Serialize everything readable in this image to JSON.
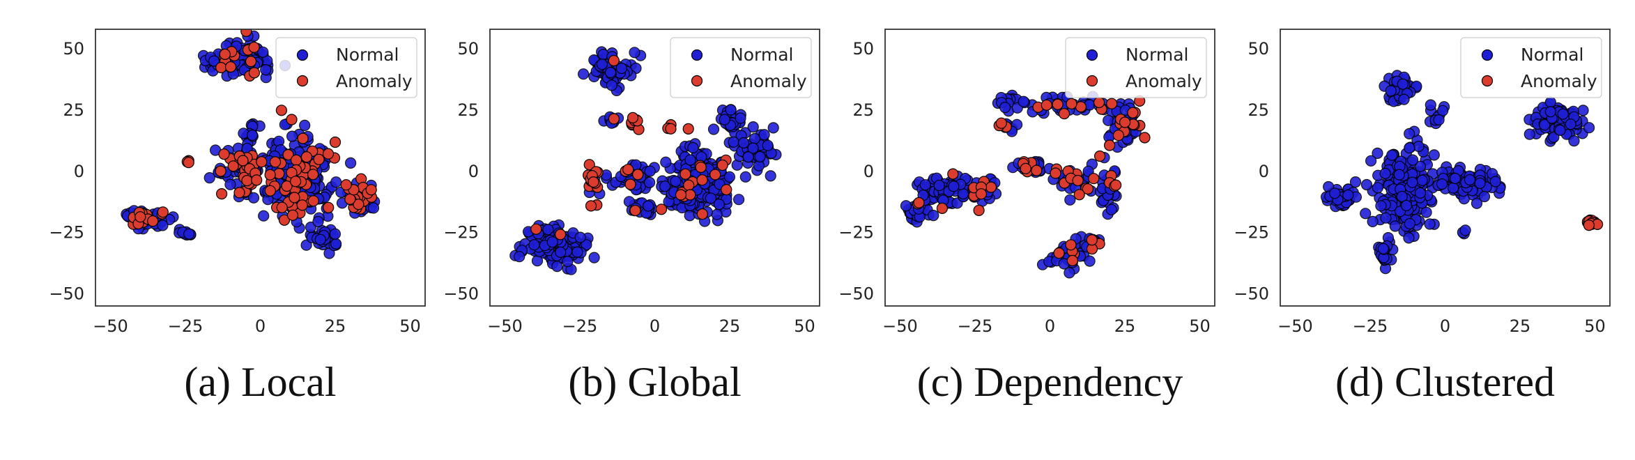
{
  "figure": {
    "legend": {
      "normal_label": "Normal",
      "anomaly_label": "Anomaly",
      "placement": "top-right"
    },
    "colors": {
      "normal": "#1f1fd6",
      "anomaly": "#dc3c2e",
      "edge": "#000000",
      "axes": "#333333"
    }
  },
  "chart_data": [
    {
      "type": "scatter",
      "caption": "(a) Local",
      "xlim": [
        -55,
        55
      ],
      "ylim": [
        -55,
        58
      ],
      "xticks": [
        -50,
        -25,
        0,
        25,
        50
      ],
      "yticks": [
        -50,
        -25,
        0,
        25,
        50
      ],
      "grid": false,
      "legend_placement": "top-right",
      "clusters": [
        {
          "cx": -7,
          "cy": 46,
          "rx": 10,
          "ry": 7,
          "n": 90,
          "anomaly_ratio": 0.18
        },
        {
          "cx": -38,
          "cy": -19,
          "rx": 7,
          "ry": 4,
          "n": 60,
          "anomaly_ratio": 0.25
        },
        {
          "cx": -25,
          "cy": -25,
          "rx": 2.5,
          "ry": 2,
          "n": 10,
          "anomaly_ratio": 0
        },
        {
          "cx": -24,
          "cy": 4,
          "rx": 1,
          "ry": 1,
          "n": 3,
          "anomaly_ratio": 1
        },
        {
          "cx": -6,
          "cy": 1,
          "rx": 8,
          "ry": 8,
          "n": 70,
          "anomaly_ratio": 0.35
        },
        {
          "cx": -3,
          "cy": 15,
          "rx": 3,
          "ry": 3,
          "n": 14,
          "anomaly_ratio": 0.2
        },
        {
          "cx": 13,
          "cy": -2,
          "rx": 11,
          "ry": 14,
          "n": 220,
          "anomaly_ratio": 0.2
        },
        {
          "cx": 33,
          "cy": -11,
          "rx": 5,
          "ry": 7,
          "n": 40,
          "anomaly_ratio": 0.45
        },
        {
          "cx": 21,
          "cy": -27,
          "rx": 4,
          "ry": 5,
          "n": 30,
          "anomaly_ratio": 0
        }
      ]
    },
    {
      "type": "scatter",
      "caption": "(b) Global",
      "xlim": [
        -55,
        55
      ],
      "ylim": [
        -55,
        58
      ],
      "xticks": [
        -50,
        -25,
        0,
        25,
        50
      ],
      "yticks": [
        -50,
        -25,
        0,
        25,
        50
      ],
      "grid": false,
      "legend_placement": "top-right",
      "clusters": [
        {
          "cx": -15,
          "cy": 42,
          "rx": 6,
          "ry": 6,
          "n": 70,
          "anomaly_ratio": 0.05
        },
        {
          "cx": -33,
          "cy": -30,
          "rx": 10,
          "ry": 7,
          "n": 140,
          "anomaly_ratio": 0.02
        },
        {
          "cx": -14,
          "cy": 21,
          "rx": 3,
          "ry": 2,
          "n": 10,
          "anomaly_ratio": 0.1
        },
        {
          "cx": -7,
          "cy": 20,
          "rx": 3,
          "ry": 3,
          "n": 8,
          "anomaly_ratio": 0.8
        },
        {
          "cx": -21,
          "cy": -4,
          "rx": 3,
          "ry": 7,
          "n": 18,
          "anomaly_ratio": 0.8
        },
        {
          "cx": -7,
          "cy": -2,
          "rx": 6,
          "ry": 5,
          "n": 50,
          "anomaly_ratio": 0.08
        },
        {
          "cx": -4,
          "cy": -15,
          "rx": 5,
          "ry": 3,
          "n": 18,
          "anomaly_ratio": 0.15
        },
        {
          "cx": 15,
          "cy": -4,
          "rx": 10,
          "ry": 12,
          "n": 220,
          "anomaly_ratio": 0.08
        },
        {
          "cx": 25,
          "cy": 20,
          "rx": 4,
          "ry": 4,
          "n": 30,
          "anomaly_ratio": 0
        },
        {
          "cx": 34,
          "cy": 8,
          "rx": 6,
          "ry": 7,
          "n": 60,
          "anomaly_ratio": 0
        },
        {
          "cx": 7,
          "cy": 18,
          "rx": 6,
          "ry": 2,
          "n": 4,
          "anomaly_ratio": 1
        }
      ]
    },
    {
      "type": "scatter",
      "caption": "(c) Dependency",
      "xlim": [
        -55,
        55
      ],
      "ylim": [
        -55,
        58
      ],
      "xticks": [
        -50,
        -25,
        0,
        25,
        50
      ],
      "yticks": [
        -50,
        -25,
        0,
        25,
        50
      ],
      "grid": false,
      "legend_placement": "top-right",
      "clusters": [
        {
          "cx": -45,
          "cy": -17,
          "rx": 4,
          "ry": 4,
          "n": 25,
          "anomaly_ratio": 0.05
        },
        {
          "cx": -35,
          "cy": -8,
          "rx": 8,
          "ry": 6,
          "n": 90,
          "anomaly_ratio": 0.05
        },
        {
          "cx": -22,
          "cy": -8,
          "rx": 5,
          "ry": 5,
          "n": 25,
          "anomaly_ratio": 0.25
        },
        {
          "cx": -14,
          "cy": 19,
          "rx": 4,
          "ry": 2,
          "n": 12,
          "anomaly_ratio": 0.15
        },
        {
          "cx": -15,
          "cy": 29,
          "rx": 3,
          "ry": 1.5,
          "n": 10,
          "anomaly_ratio": 0
        },
        {
          "cx": 5,
          "cy": 27,
          "rx": 18,
          "ry": 3,
          "n": 50,
          "anomaly_ratio": 0.15
        },
        {
          "cx": -6,
          "cy": 2,
          "rx": 6,
          "ry": 3,
          "n": 25,
          "anomaly_ratio": 0.25
        },
        {
          "cx": 8,
          "cy": -4,
          "rx": 6,
          "ry": 5,
          "n": 30,
          "anomaly_ratio": 0.3
        },
        {
          "cx": 6,
          "cy": -35,
          "rx": 6,
          "ry": 5,
          "n": 40,
          "anomaly_ratio": 0.1
        },
        {
          "cx": 13,
          "cy": -29,
          "rx": 4,
          "ry": 4,
          "n": 16,
          "anomaly_ratio": 0.3
        },
        {
          "cx": 25,
          "cy": 18,
          "rx": 5,
          "ry": 7,
          "n": 50,
          "anomaly_ratio": 0.25
        },
        {
          "cx": 20,
          "cy": -8,
          "rx": 3,
          "ry": 9,
          "n": 30,
          "anomaly_ratio": 0.3
        }
      ]
    },
    {
      "type": "scatter",
      "caption": "(d) Clustered",
      "xlim": [
        -55,
        55
      ],
      "ylim": [
        -55,
        58
      ],
      "xticks": [
        -50,
        -25,
        0,
        25,
        50
      ],
      "yticks": [
        -50,
        -25,
        0,
        25,
        50
      ],
      "grid": false,
      "legend_placement": "top-right",
      "clusters": [
        {
          "cx": -15,
          "cy": 34,
          "rx": 5,
          "ry": 4,
          "n": 50,
          "anomaly_ratio": 0
        },
        {
          "cx": -3,
          "cy": 24,
          "rx": 3,
          "ry": 4,
          "n": 10,
          "anomaly_ratio": 0
        },
        {
          "cx": 38,
          "cy": 21,
          "rx": 8,
          "ry": 6,
          "n": 120,
          "anomaly_ratio": 0
        },
        {
          "cx": -35,
          "cy": -11,
          "rx": 5,
          "ry": 4,
          "n": 40,
          "anomaly_ratio": 0
        },
        {
          "cx": -14,
          "cy": -8,
          "rx": 9,
          "ry": 14,
          "n": 220,
          "anomaly_ratio": 0
        },
        {
          "cx": -20,
          "cy": -33,
          "rx": 3,
          "ry": 5,
          "n": 25,
          "anomaly_ratio": 0
        },
        {
          "cx": 8,
          "cy": -5,
          "rx": 9,
          "ry": 6,
          "n": 90,
          "anomaly_ratio": 0
        },
        {
          "cx": 6,
          "cy": -25,
          "rx": 1,
          "ry": 1,
          "n": 3,
          "anomaly_ratio": 0
        },
        {
          "cx": 49,
          "cy": -21,
          "rx": 2,
          "ry": 2,
          "n": 12,
          "anomaly_ratio": 1
        }
      ]
    }
  ]
}
